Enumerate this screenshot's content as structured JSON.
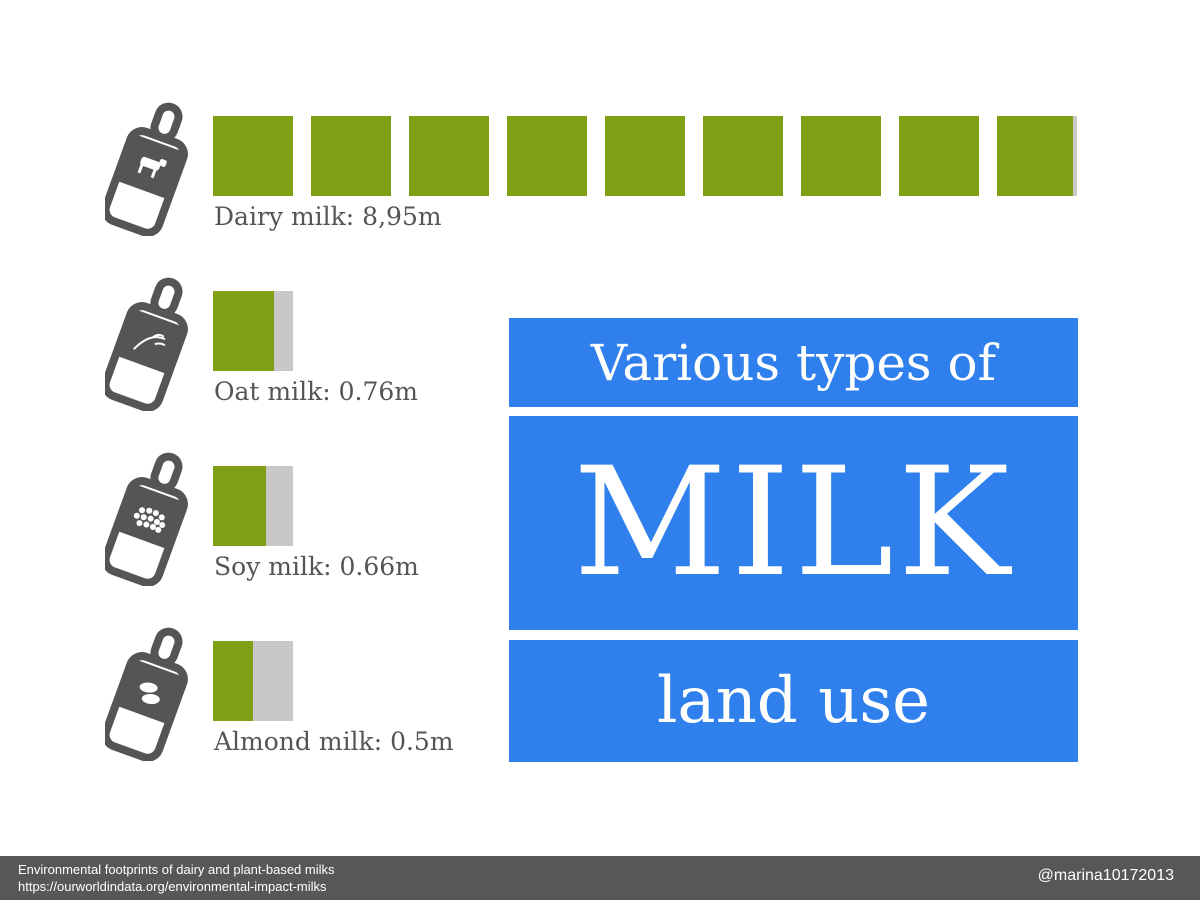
{
  "title": {
    "line1": "Various types of",
    "main": "MILK",
    "line3": "land use"
  },
  "chart_data": {
    "type": "bar",
    "categories": [
      "Dairy milk",
      "Oat milk",
      "Soy milk",
      "Almond milk"
    ],
    "values": [
      8.95,
      0.76,
      0.66,
      0.5
    ],
    "labels": [
      "Dairy milk:  8,95m",
      "Oat milk: 0.76m",
      "Soy milk: 0.66m",
      "Almond milk: 0.5m"
    ],
    "icons": [
      "cow-icon",
      "oat-icon",
      "soybean-icon",
      "almond-icon"
    ],
    "title": "Various types of MILK land use",
    "xlabel": "",
    "ylabel": "",
    "colors": {
      "filled": "#7f9f14",
      "empty": "#c8c8c8"
    }
  },
  "footer": {
    "source_title": "Environmental footprints of dairy and plant-based milks",
    "source_url": "https://ourworldindata.org/environmental-impact-milks",
    "credit": "@marina10172013"
  },
  "colors": {
    "title_bg": "#2f80ed",
    "footer_bg": "#575757",
    "bottle": "#555555"
  }
}
